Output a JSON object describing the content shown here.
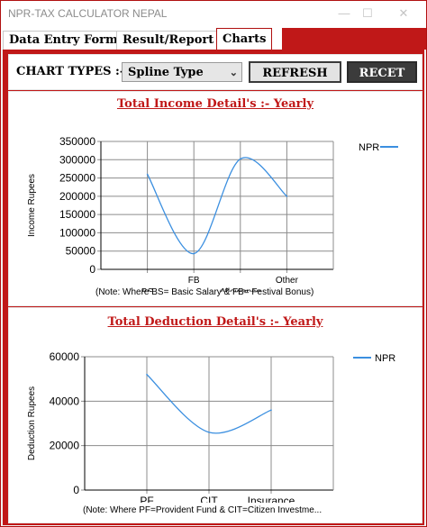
{
  "window": {
    "title": "NPR-TAX CALCULATOR NEPAL",
    "minimize": "—",
    "maximize": "☐",
    "close": "✕"
  },
  "tabs": [
    {
      "label": "Data Entry Form"
    },
    {
      "label": "Result/Report"
    },
    {
      "label": "Charts"
    }
  ],
  "toolbar": {
    "chart_types_label": "CHART TYPES :-",
    "chart_type_value": "Spline Type",
    "refresh_label": "REFRESH",
    "recet_label": "RECET"
  },
  "colors": {
    "accent": "#c01818",
    "series": "#3b8fe0"
  },
  "icons": {
    "dropdown": "chevron-down-icon"
  },
  "chart_data": [
    {
      "type": "line",
      "smooth": true,
      "title": "Total Income Detail's :- Yearly",
      "xlabel": "",
      "ylabel": "Income Rupees",
      "categories": [
        "BS",
        "FB",
        "Allowance",
        "Other"
      ],
      "series": [
        {
          "name": "NPR",
          "values": [
            260000,
            43000,
            302000,
            200000
          ]
        }
      ],
      "ylim": [
        0,
        350000
      ],
      "yticks": [
        "350000",
        "300000",
        "250000",
        "200000",
        "150000",
        "100000",
        "50000",
        "0"
      ],
      "grid": true,
      "legend": "top-right",
      "note": "(Note: Where BS= Basic Salary & FB= Festival Bonus)"
    },
    {
      "type": "line",
      "smooth": true,
      "title": "Total Deduction Detail's :- Yearly",
      "xlabel": "",
      "ylabel": "Deduction Rupees",
      "categories": [
        "PF",
        "CIT",
        "Insurance"
      ],
      "series": [
        {
          "name": "NPR",
          "values": [
            52000,
            26000,
            36000
          ]
        }
      ],
      "ylim": [
        0,
        60000
      ],
      "yticks": [
        "60000",
        "40000",
        "20000",
        "0"
      ],
      "grid": true,
      "legend": "top-right",
      "note": "(Note: Where PF=Provident Fund & CIT=Citizen Investme..."
    }
  ]
}
